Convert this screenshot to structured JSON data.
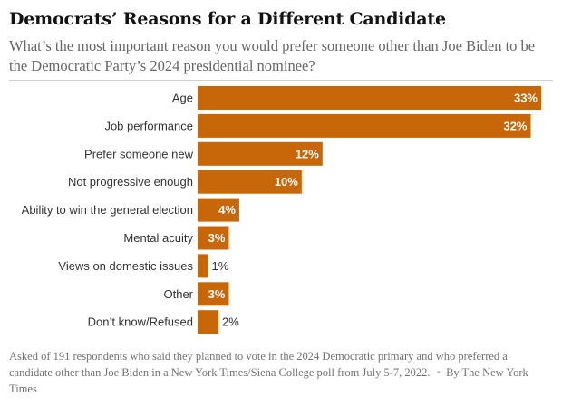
{
  "header": {
    "title": "Democrats’ Reasons for a Different Candidate",
    "subtitle": "What’s the most important reason you would prefer someone other than Joe Biden to be the Democratic Party’s 2024 presidential nominee?"
  },
  "footer": {
    "note": "Asked of 191 respondents who said they planned to vote in the 2024 Democratic primary and who preferred a candidate other than Joe Biden in a New York Times/Siena College poll from July 5-7, 2022.",
    "separator": "•",
    "byline": "By The New York Times"
  },
  "colors": {
    "bar": "#c8660a",
    "label_inside": "#ffffff",
    "label_outside": "#333333"
  },
  "chart_data": {
    "type": "bar",
    "orientation": "horizontal",
    "categories": [
      "Age",
      "Job performance",
      "Prefer someone new",
      "Not progressive enough",
      "Ability to win the general election",
      "Mental acuity",
      "Views on domestic issues",
      "Other",
      "Don’t know/Refused"
    ],
    "values": [
      33,
      32,
      12,
      10,
      4,
      3,
      1,
      3,
      2
    ],
    "value_labels": [
      "33%",
      "32%",
      "12%",
      "10%",
      "4%",
      "3%",
      "1%",
      "3%",
      "2%"
    ],
    "xlim": [
      0,
      33
    ],
    "unit": "%",
    "grid": false,
    "legend": false
  }
}
